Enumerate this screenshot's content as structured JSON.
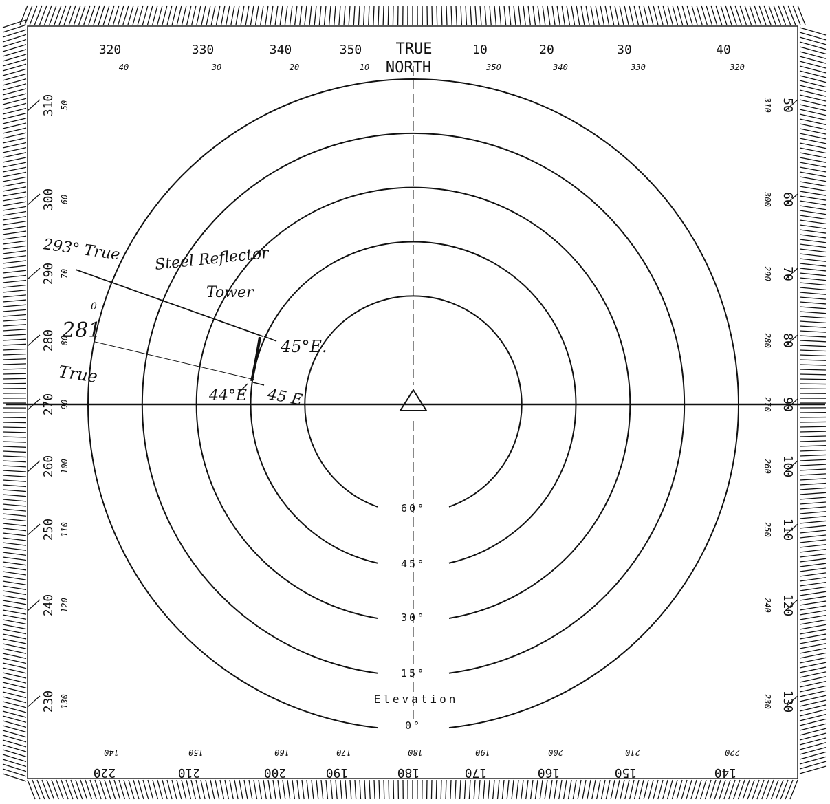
{
  "header": {
    "north_line1": "TRUE",
    "north_line2": "NORTH"
  },
  "azimuth_labels": {
    "top_outer": [
      "320",
      "330",
      "340",
      "350",
      "10",
      "20",
      "30",
      "40"
    ],
    "top_inner": [
      "40",
      "30",
      "20",
      "10",
      "350",
      "340",
      "330",
      "320"
    ],
    "bottom_outer": [
      "220",
      "210",
      "200",
      "190",
      "180",
      "170",
      "160",
      "150",
      "140"
    ],
    "bottom_inner": [
      "140",
      "150",
      "160",
      "170",
      "180",
      "190",
      "200",
      "210",
      "220"
    ],
    "left_outer": [
      "310",
      "300",
      "290",
      "280",
      "270",
      "260",
      "250",
      "240",
      "230"
    ],
    "left_inner": [
      "50",
      "60",
      "70",
      "80",
      "90",
      "100",
      "110",
      "120",
      "130"
    ],
    "right_outer": [
      "50",
      "60",
      "70",
      "80",
      "90",
      "100",
      "110",
      "120",
      "130"
    ],
    "right_inner": [
      "310",
      "300",
      "290",
      "280",
      "270",
      "260",
      "250",
      "240",
      "230"
    ]
  },
  "elevation": {
    "title": "Elevation",
    "rings": [
      "60°",
      "45°",
      "30°",
      "15°",
      "0°"
    ]
  },
  "annotations": {
    "bearing_upper": "293° True",
    "bearing_lower_num": "281",
    "bearing_lower_word": "True",
    "object_line1": "Steel Reflector",
    "object_line2": "Tower",
    "elev_upper_right": "45°E.",
    "elev_lower_right": "45 E",
    "elev_lower_left": "44°E",
    "stray_mark": "0"
  },
  "chart_data": {
    "type": "polar-sunpath",
    "elevation_rings_deg": [
      60,
      45,
      30,
      15,
      0
    ],
    "obstruction": {
      "name": "Steel Reflector Tower",
      "azimuth_true_deg": [
        281,
        293
      ],
      "elevation_deg": [
        44,
        45
      ]
    }
  },
  "colors": {
    "ink": "#111111",
    "paper": "#ffffff"
  }
}
